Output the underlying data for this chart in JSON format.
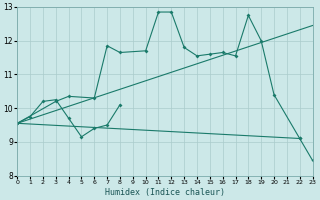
{
  "title": "",
  "xlabel": "Humidex (Indice chaleur)",
  "xlim": [
    0,
    23
  ],
  "ylim": [
    8,
    13
  ],
  "yticks": [
    8,
    9,
    10,
    11,
    12,
    13
  ],
  "xticks": [
    0,
    1,
    2,
    3,
    4,
    5,
    6,
    7,
    8,
    9,
    10,
    11,
    12,
    13,
    14,
    15,
    16,
    17,
    18,
    19,
    20,
    21,
    22,
    23
  ],
  "bg_color": "#cce8e8",
  "grid_color": "#aacccc",
  "line_color": "#1a7a6a",
  "line1_x": [
    0,
    1,
    2,
    3,
    4,
    5,
    6,
    7,
    8
  ],
  "line1_y": [
    9.55,
    9.75,
    10.2,
    10.25,
    9.7,
    9.15,
    9.4,
    9.5,
    10.1
  ],
  "line2_x": [
    0,
    3,
    4,
    6,
    7,
    8,
    10,
    11,
    12,
    13,
    14,
    15,
    16,
    17,
    18,
    19,
    20,
    22
  ],
  "line2_y": [
    9.55,
    10.2,
    10.35,
    10.3,
    11.85,
    11.65,
    11.7,
    12.85,
    12.85,
    11.8,
    11.55,
    11.6,
    11.65,
    11.55,
    12.75,
    12.0,
    10.4,
    9.1
  ],
  "line3_x": [
    0,
    22,
    23
  ],
  "line3_y": [
    9.55,
    9.1,
    8.45
  ],
  "trend_x": [
    0,
    23
  ],
  "trend_y": [
    9.55,
    12.45
  ]
}
